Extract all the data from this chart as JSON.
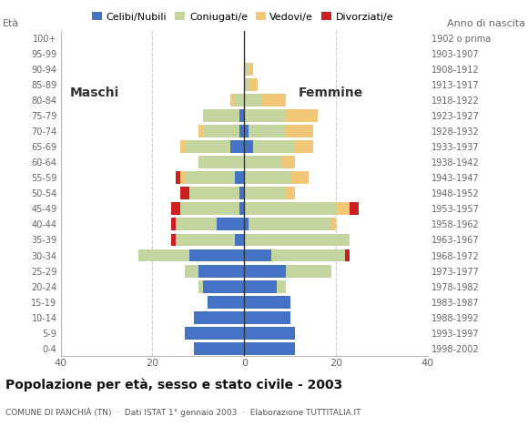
{
  "age_groups": [
    "0-4",
    "5-9",
    "10-14",
    "15-19",
    "20-24",
    "25-29",
    "30-34",
    "35-39",
    "40-44",
    "45-49",
    "50-54",
    "55-59",
    "60-64",
    "65-69",
    "70-74",
    "75-79",
    "80-84",
    "85-89",
    "90-94",
    "95-99",
    "100+"
  ],
  "birth_years": [
    "1998-2002",
    "1993-1997",
    "1988-1992",
    "1983-1987",
    "1978-1982",
    "1973-1977",
    "1968-1972",
    "1963-1967",
    "1958-1962",
    "1953-1957",
    "1948-1952",
    "1943-1947",
    "1938-1942",
    "1933-1937",
    "1928-1932",
    "1923-1927",
    "1918-1922",
    "1913-1917",
    "1908-1912",
    "1903-1907",
    "1902 o prima"
  ],
  "colors": {
    "celibe": "#4472C4",
    "coniugato": "#c5d5a0",
    "vedovo": "#f0c878",
    "divorziato": "#cc2020"
  },
  "males": {
    "celibe": [
      11,
      13,
      11,
      8,
      9,
      10,
      12,
      2,
      6,
      1,
      1,
      2,
      0,
      3,
      1,
      1,
      0,
      0,
      0,
      0,
      0
    ],
    "coniugato": [
      0,
      0,
      0,
      0,
      1,
      3,
      11,
      13,
      9,
      13,
      11,
      11,
      10,
      10,
      8,
      8,
      2,
      0,
      0,
      0,
      0
    ],
    "vedovo": [
      0,
      0,
      0,
      0,
      0,
      0,
      0,
      0,
      0,
      0,
      0,
      1,
      0,
      1,
      1,
      0,
      1,
      0,
      0,
      0,
      0
    ],
    "divorziato": [
      0,
      0,
      0,
      0,
      0,
      0,
      0,
      1,
      1,
      2,
      2,
      1,
      0,
      0,
      0,
      0,
      0,
      0,
      0,
      0,
      0
    ]
  },
  "females": {
    "celibe": [
      11,
      11,
      10,
      10,
      7,
      9,
      6,
      0,
      1,
      0,
      0,
      0,
      0,
      2,
      1,
      0,
      0,
      0,
      0,
      0,
      0
    ],
    "coniugato": [
      0,
      0,
      0,
      0,
      2,
      10,
      16,
      23,
      18,
      20,
      9,
      10,
      8,
      9,
      8,
      9,
      4,
      1,
      1,
      0,
      0
    ],
    "vedovo": [
      0,
      0,
      0,
      0,
      0,
      0,
      0,
      0,
      1,
      3,
      2,
      4,
      3,
      4,
      6,
      7,
      5,
      2,
      1,
      0,
      0
    ],
    "divorziato": [
      0,
      0,
      0,
      0,
      0,
      0,
      1,
      0,
      0,
      2,
      0,
      0,
      0,
      0,
      0,
      0,
      0,
      0,
      0,
      0,
      0
    ]
  },
  "title": "Popolazione per età, sesso e stato civile - 2003",
  "subtitle": "COMUNE DI PANCHIÀ (TN)  ·  Dati ISTAT 1° gennaio 2003  ·  Elaborazione TUTTITALIA.IT",
  "eta_label": "Età",
  "anno_label": "Anno di nascita",
  "label_maschi": "Maschi",
  "label_femmine": "Femmine",
  "xlim": 40,
  "legend_labels": [
    "Celibi/Nubili",
    "Coniugati/e",
    "Vedovi/e",
    "Divorziati/e"
  ]
}
